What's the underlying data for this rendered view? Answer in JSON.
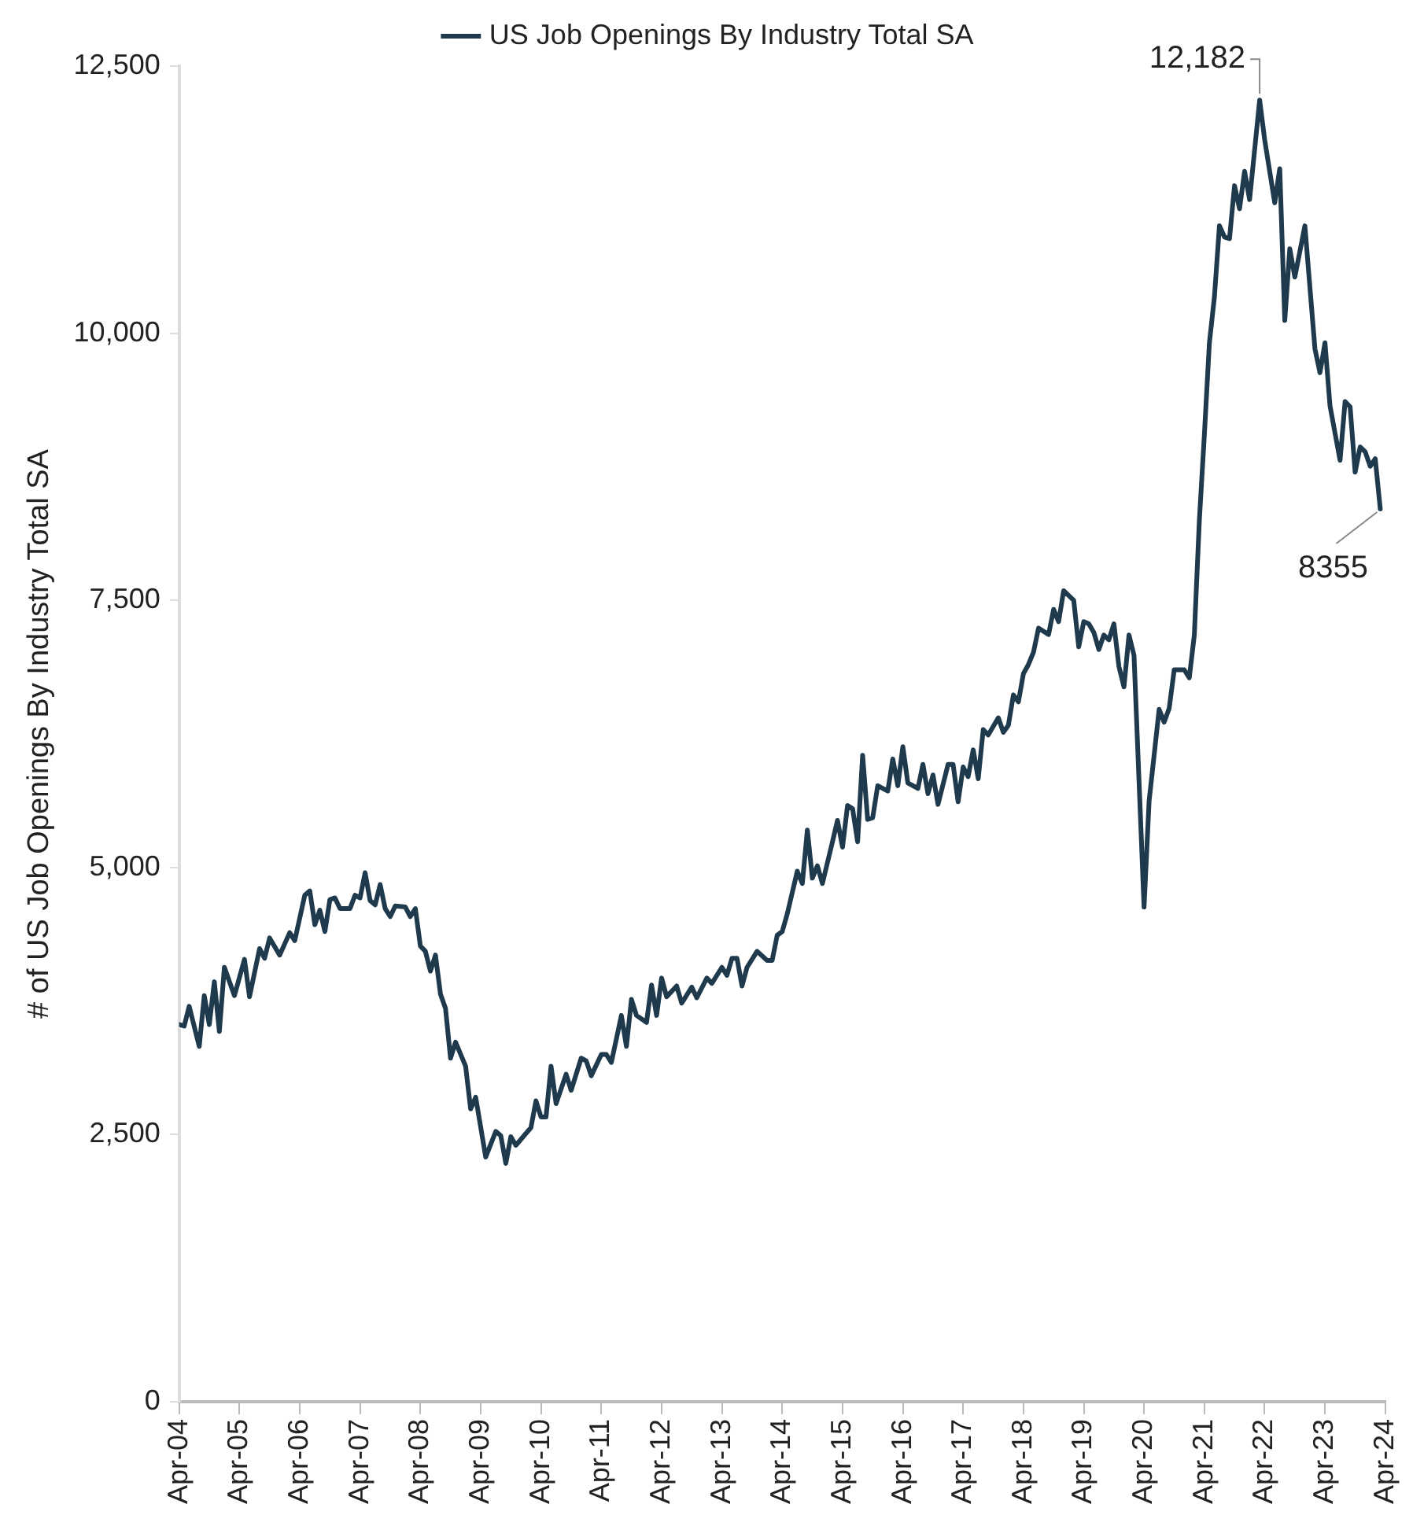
{
  "chart_data": {
    "type": "line",
    "ylabel": "# of US Job Openings By Industry Total SA",
    "legend": "top",
    "grid": false,
    "marker": "none",
    "line_style": "solid",
    "x": [
      "2004-04",
      "2004-05",
      "2004-06",
      "2004-08",
      "2004-09",
      "2004-10",
      "2004-11",
      "2004-12",
      "2005-01",
      "2005-03",
      "2005-05",
      "2005-06",
      "2005-08",
      "2005-09",
      "2005-10",
      "2005-12",
      "2006-02",
      "2006-03",
      "2006-05",
      "2006-06",
      "2006-07",
      "2006-08",
      "2006-09",
      "2006-10",
      "2006-11",
      "2006-12",
      "2007-02",
      "2007-03",
      "2007-04",
      "2007-05",
      "2007-06",
      "2007-07",
      "2007-08",
      "2007-09",
      "2007-10",
      "2007-11",
      "2008-01",
      "2008-02",
      "2008-03",
      "2008-04",
      "2008-05",
      "2008-06",
      "2008-07",
      "2008-08",
      "2008-09",
      "2008-10",
      "2008-11",
      "2009-01",
      "2009-02",
      "2009-03",
      "2009-05",
      "2009-07",
      "2009-08",
      "2009-09",
      "2009-10",
      "2009-11",
      "2010-02",
      "2010-03",
      "2010-04",
      "2010-05",
      "2010-06",
      "2010-07",
      "2010-09",
      "2010-10",
      "2010-12",
      "2011-01",
      "2011-02",
      "2011-04",
      "2011-05",
      "2011-06",
      "2011-08",
      "2011-09",
      "2011-10",
      "2011-11",
      "2012-01",
      "2012-02",
      "2012-03",
      "2012-04",
      "2012-05",
      "2012-07",
      "2012-08",
      "2012-10",
      "2012-11",
      "2013-01",
      "2013-02",
      "2013-04",
      "2013-05",
      "2013-06",
      "2013-07",
      "2013-08",
      "2013-09",
      "2013-11",
      "2014-01",
      "2014-02",
      "2014-03",
      "2014-04",
      "2014-05",
      "2014-07",
      "2014-08",
      "2014-09",
      "2014-10",
      "2014-11",
      "2014-12",
      "2015-02",
      "2015-03",
      "2015-04",
      "2015-05",
      "2015-06",
      "2015-07",
      "2015-08",
      "2015-09",
      "2015-10",
      "2015-11",
      "2016-01",
      "2016-02",
      "2016-03",
      "2016-04",
      "2016-05",
      "2016-07",
      "2016-08",
      "2016-09",
      "2016-10",
      "2016-11",
      "2017-01",
      "2017-02",
      "2017-03",
      "2017-04",
      "2017-05",
      "2017-06",
      "2017-07",
      "2017-08",
      "2017-09",
      "2017-11",
      "2017-12",
      "2018-01",
      "2018-02",
      "2018-03",
      "2018-04",
      "2018-05",
      "2018-06",
      "2018-07",
      "2018-09",
      "2018-10",
      "2018-11",
      "2018-12",
      "2019-02",
      "2019-03",
      "2019-04",
      "2019-05",
      "2019-06",
      "2019-07",
      "2019-08",
      "2019-09",
      "2019-10",
      "2019-11",
      "2019-12",
      "2020-01",
      "2020-02",
      "2020-04",
      "2020-05",
      "2020-07",
      "2020-08",
      "2020-09",
      "2020-10",
      "2020-12",
      "2021-01",
      "2021-02",
      "2021-03",
      "2021-04",
      "2021-05",
      "2021-06",
      "2021-07",
      "2021-08",
      "2021-09",
      "2021-10",
      "2021-11",
      "2021-12",
      "2022-01",
      "2022-03",
      "2022-04",
      "2022-06",
      "2022-07",
      "2022-08",
      "2022-09",
      "2022-10",
      "2022-12",
      "2023-02",
      "2023-03",
      "2023-04",
      "2023-05",
      "2023-07",
      "2023-08",
      "2023-09",
      "2023-10",
      "2023-11",
      "2023-12",
      "2024-01",
      "2024-02",
      "2024-03"
    ],
    "series": [
      {
        "name": "US Job Openings By Industry Total SA",
        "color": "#1f3a4d",
        "values": [
          3530,
          3515,
          3700,
          3325,
          3800,
          3530,
          3930,
          3465,
          4065,
          3800,
          4140,
          3790,
          4240,
          4150,
          4340,
          4180,
          4390,
          4315,
          4740,
          4780,
          4465,
          4600,
          4400,
          4700,
          4715,
          4615,
          4615,
          4740,
          4715,
          4950,
          4690,
          4650,
          4840,
          4615,
          4540,
          4640,
          4630,
          4540,
          4615,
          4265,
          4215,
          4030,
          4180,
          3815,
          3680,
          3215,
          3365,
          3140,
          2740,
          2850,
          2290,
          2530,
          2490,
          2230,
          2480,
          2400,
          2565,
          2815,
          2665,
          2665,
          3140,
          2790,
          3065,
          2915,
          3215,
          3190,
          3050,
          3250,
          3250,
          3175,
          3615,
          3325,
          3765,
          3615,
          3550,
          3900,
          3615,
          3965,
          3790,
          3890,
          3730,
          3880,
          3780,
          3965,
          3915,
          4065,
          3990,
          4150,
          4150,
          3890,
          4065,
          4215,
          4130,
          4130,
          4365,
          4400,
          4565,
          4965,
          4850,
          5350,
          4900,
          5015,
          4850,
          5240,
          5440,
          5190,
          5580,
          5550,
          5240,
          6050,
          5450,
          5465,
          5765,
          5715,
          6015,
          5765,
          6130,
          5790,
          5740,
          5965,
          5690,
          5865,
          5590,
          5965,
          5965,
          5615,
          5940,
          5850,
          6100,
          5830,
          6290,
          6240,
          6400,
          6265,
          6330,
          6615,
          6550,
          6815,
          6900,
          7015,
          7240,
          7180,
          7415,
          7300,
          7590,
          7500,
          7065,
          7300,
          7280,
          7200,
          7040,
          7175,
          7130,
          7280,
          6880,
          6690,
          7175,
          6985,
          4630,
          5620,
          6480,
          6360,
          6490,
          6850,
          6850,
          6775,
          7175,
          8245,
          9050,
          9910,
          10340,
          11005,
          10900,
          10885,
          11380,
          11165,
          11515,
          11250,
          12182,
          11810,
          11220,
          11540,
          10120,
          10790,
          10525,
          11005,
          9855,
          9630,
          9910,
          9320,
          8810,
          9360,
          9310,
          8700,
          8935,
          8890,
          8755,
          8825,
          8355
        ]
      }
    ],
    "xlim": [
      "2004-04",
      "2024-04"
    ],
    "xticks": [
      {
        "value": "2004-04",
        "label": "Apr-04"
      },
      {
        "value": "2005-04",
        "label": "Apr-05"
      },
      {
        "value": "2006-04",
        "label": "Apr-06"
      },
      {
        "value": "2007-04",
        "label": "Apr-07"
      },
      {
        "value": "2008-04",
        "label": "Apr-08"
      },
      {
        "value": "2009-04",
        "label": "Apr-09"
      },
      {
        "value": "2010-04",
        "label": "Apr-10"
      },
      {
        "value": "2011-04",
        "label": "Apr-11"
      },
      {
        "value": "2012-04",
        "label": "Apr-12"
      },
      {
        "value": "2013-04",
        "label": "Apr-13"
      },
      {
        "value": "2014-04",
        "label": "Apr-14"
      },
      {
        "value": "2015-04",
        "label": "Apr-15"
      },
      {
        "value": "2016-04",
        "label": "Apr-16"
      },
      {
        "value": "2017-04",
        "label": "Apr-17"
      },
      {
        "value": "2018-04",
        "label": "Apr-18"
      },
      {
        "value": "2019-04",
        "label": "Apr-19"
      },
      {
        "value": "2020-04",
        "label": "Apr-20"
      },
      {
        "value": "2021-04",
        "label": "Apr-21"
      },
      {
        "value": "2022-04",
        "label": "Apr-22"
      },
      {
        "value": "2023-04",
        "label": "Apr-23"
      },
      {
        "value": "2024-04",
        "label": "Apr-24"
      }
    ],
    "ylim": [
      0,
      12500
    ],
    "yticks": [
      0,
      {
        "value": 2500,
        "label": "2,500"
      },
      {
        "value": 5000,
        "label": "5,000"
      },
      {
        "value": 7500,
        "label": "7,500"
      },
      {
        "value": 10000,
        "label": "10,000"
      },
      {
        "value": 12500,
        "label": "12,500"
      }
    ],
    "annotations": [
      {
        "text": "12,182",
        "x": "2022-03",
        "y": 12182
      },
      {
        "text": "8355",
        "x": "2024-03",
        "y": 8355
      }
    ]
  }
}
